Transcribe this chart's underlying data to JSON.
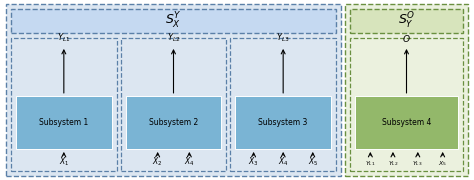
{
  "fig_width": 4.74,
  "fig_height": 1.8,
  "dpi": 100,
  "blue_subsys_color": "#7ab4d4",
  "green_subsys_color": "#93b86a",
  "outer_blue_fill": "#dce6f1",
  "outer_green_fill": "#ebf1de",
  "top_blue_fill": "#c5d9f1",
  "top_green_fill": "#d7e4bc",
  "blue_edge": "#5b80a8",
  "green_edge": "#6a9040",
  "subsystems": [
    {
      "label": "Subsystem 1",
      "color": "blue",
      "output_label": "Y_{L1}",
      "inputs": [
        "X_1"
      ]
    },
    {
      "label": "Subsystem 2",
      "color": "blue",
      "output_label": "Y_{L2}",
      "inputs": [
        "X_2",
        "X_4"
      ]
    },
    {
      "label": "Subsystem 3",
      "color": "blue",
      "output_label": "Y_{L3}",
      "inputs": [
        "X_3",
        "X_4",
        "X_5"
      ]
    },
    {
      "label": "Subsystem 4",
      "color": "green",
      "output_label": "O",
      "inputs": [
        "Y_{L1}",
        "Y_{L2}",
        "Y_{L3}",
        "X_5"
      ]
    }
  ]
}
